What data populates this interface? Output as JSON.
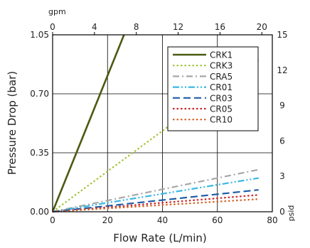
{
  "chart_data": {
    "type": "line",
    "xlabel": "Flow Rate (L/min)",
    "ylabel": "Pressure Drop (bar)",
    "x2label": "gpm",
    "y2label": "psid",
    "xlim": [
      0,
      80
    ],
    "ylim": [
      0,
      1.05
    ],
    "x_ticks": [
      "0",
      "20",
      "40",
      "60",
      "80"
    ],
    "y_ticks": [
      "0.00",
      "0.35",
      "0.70",
      "1.05"
    ],
    "x2lim": [
      0,
      21
    ],
    "x2_ticks": [
      "0",
      "4",
      "8",
      "12",
      "16",
      "20"
    ],
    "y2lim": [
      0,
      15
    ],
    "y2_ticks": [
      "0",
      "3",
      "6",
      "9",
      "12",
      "15"
    ],
    "grid": true,
    "legend_position": "top-right",
    "series": [
      {
        "name": "CRK1",
        "color": "#4a5a12",
        "dash": "solid",
        "x": [
          0,
          26
        ],
        "y": [
          0,
          1.05
        ]
      },
      {
        "name": "CRK3",
        "color": "#a4c43a",
        "dash": "dot",
        "x": [
          0,
          75
        ],
        "y": [
          0,
          0.9
        ]
      },
      {
        "name": "CRA5",
        "color": "#a7a7a7",
        "dash": "dashdot",
        "x": [
          0,
          75
        ],
        "y": [
          0,
          0.25
        ]
      },
      {
        "name": "CR01",
        "color": "#3ab7e4",
        "dash": "dashdotdot",
        "x": [
          0,
          75
        ],
        "y": [
          0,
          0.2
        ]
      },
      {
        "name": "CR03",
        "color": "#1e5ea8",
        "dash": "dash",
        "x": [
          0,
          75
        ],
        "y": [
          0,
          0.13
        ]
      },
      {
        "name": "CR05",
        "color": "#cc2626",
        "dash": "dot",
        "x": [
          0,
          75
        ],
        "y": [
          0,
          0.1
        ]
      },
      {
        "name": "CR10",
        "color": "#d2662b",
        "dash": "dot",
        "x": [
          0,
          75
        ],
        "y": [
          0,
          0.075
        ]
      }
    ]
  }
}
